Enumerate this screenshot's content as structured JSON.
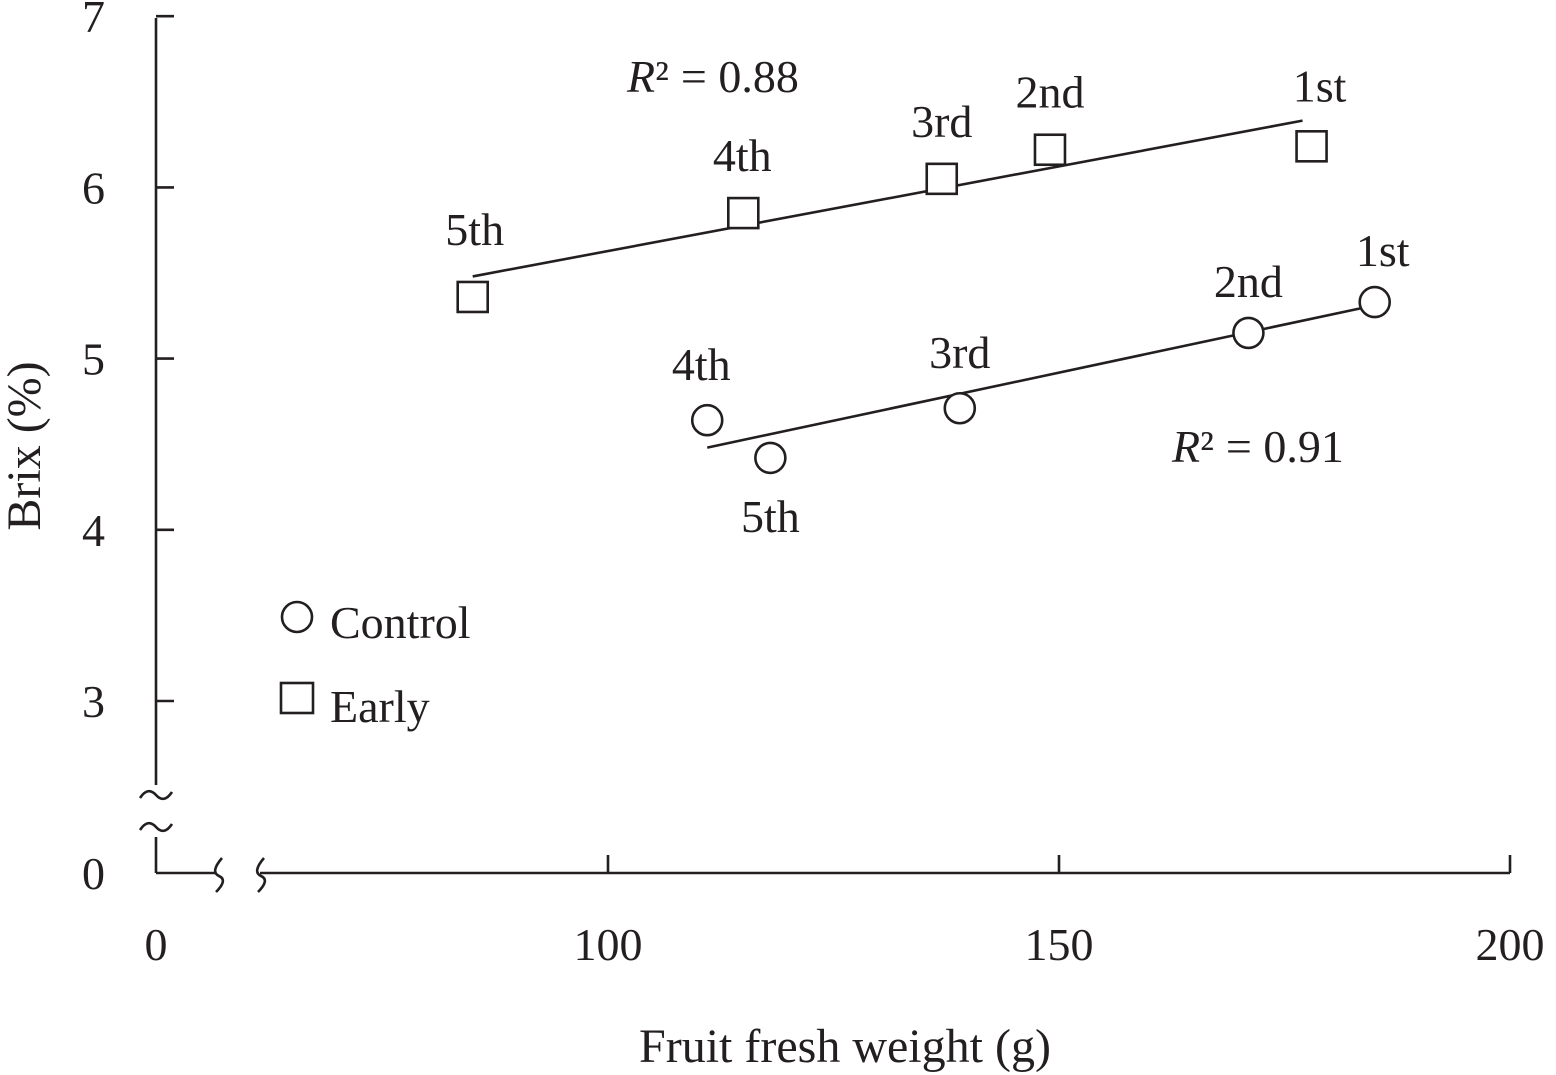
{
  "chart_data": {
    "type": "scatter",
    "xlabel": "Fruit fresh weight (g)",
    "ylabel": "Brix (%)",
    "x_ticks": [
      "0",
      "100",
      "150",
      "200"
    ],
    "y_ticks": [
      "0",
      "3",
      "4",
      "5",
      "6",
      "7"
    ],
    "xlim": [
      0,
      200
    ],
    "ylim": [
      0,
      7
    ],
    "x_axis_break": true,
    "y_axis_break": true,
    "legend_position": "bottom-left",
    "legend": [
      {
        "label": "Control",
        "marker": "circle"
      },
      {
        "label": "Early",
        "marker": "square"
      }
    ],
    "series": [
      {
        "name": "Control",
        "marker": "circle",
        "r2_label": "= 0.91",
        "points": [
          {
            "label": "1st",
            "x": 185,
            "y": 5.33
          },
          {
            "label": "2nd",
            "x": 171,
            "y": 5.15
          },
          {
            "label": "3rd",
            "x": 139,
            "y": 4.71
          },
          {
            "label": "4th",
            "x": 111,
            "y": 4.64
          },
          {
            "label": "5th",
            "x": 118,
            "y": 4.42
          }
        ],
        "fit": {
          "x": [
            111,
            184
          ],
          "y": [
            4.48,
            5.3
          ]
        }
      },
      {
        "name": "Early",
        "marker": "square",
        "r2_label": "= 0.88",
        "points": [
          {
            "label": "1st",
            "x": 178,
            "y": 6.24
          },
          {
            "label": "2nd",
            "x": 149,
            "y": 6.22
          },
          {
            "label": "3rd",
            "x": 137,
            "y": 6.05
          },
          {
            "label": "4th",
            "x": 115,
            "y": 5.85
          },
          {
            "label": "5th",
            "x": 85,
            "y": 5.36
          }
        ],
        "fit": {
          "x": [
            85,
            177
          ],
          "y": [
            5.48,
            6.39
          ]
        }
      }
    ]
  }
}
